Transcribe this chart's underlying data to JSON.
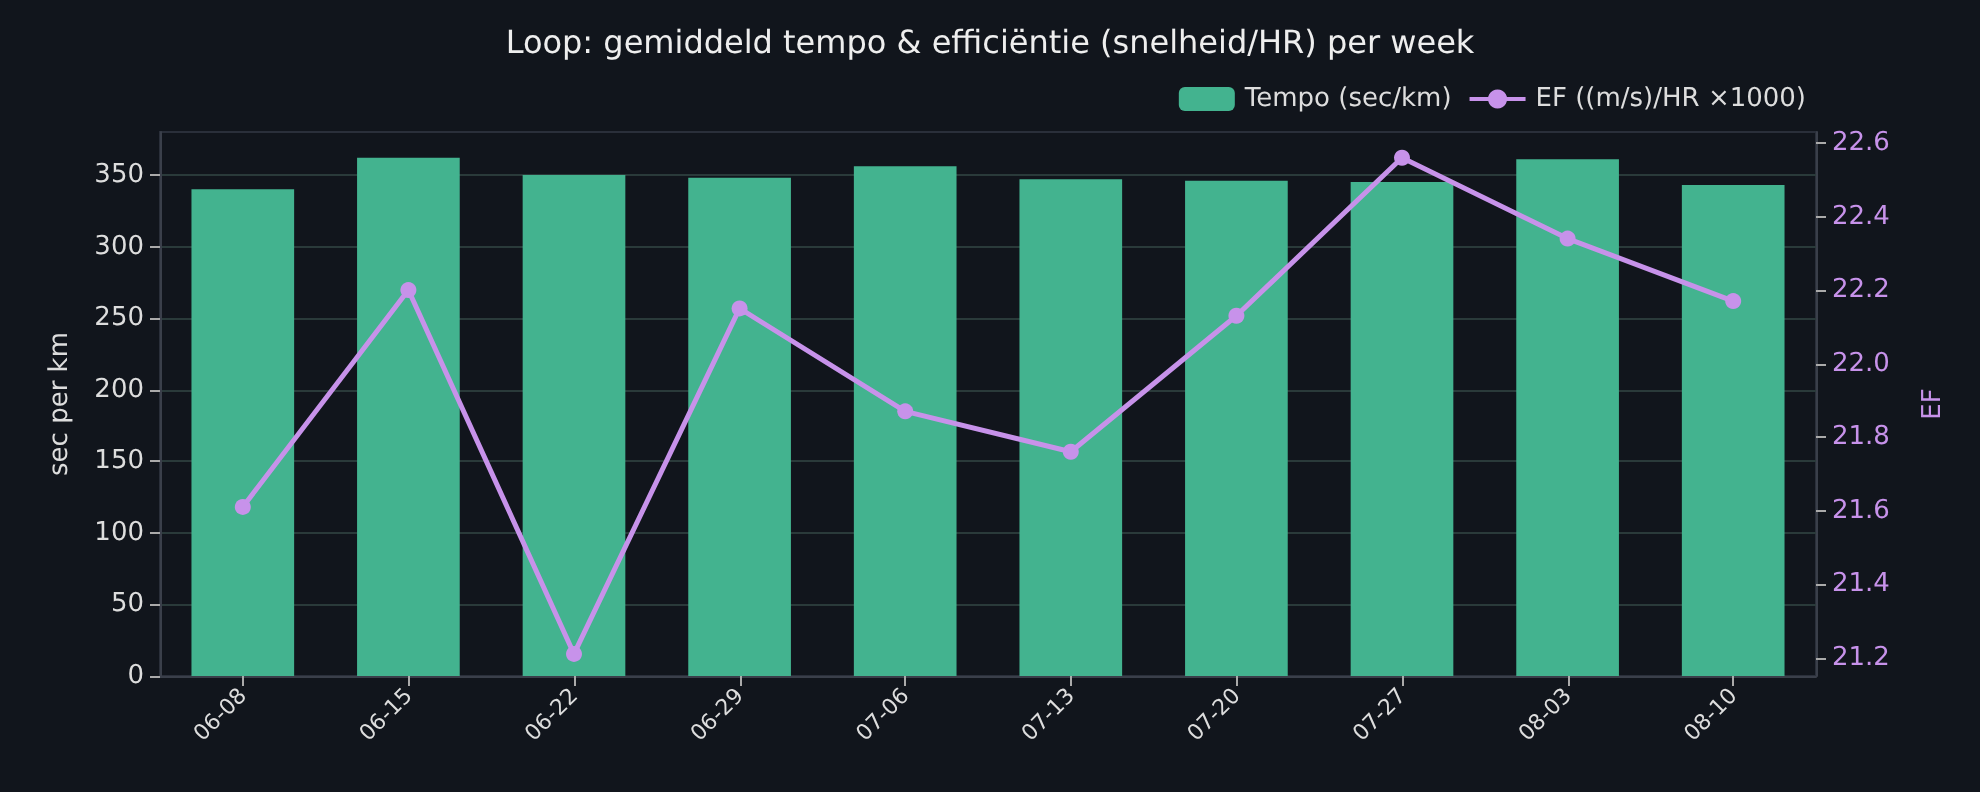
{
  "chart_data": {
    "type": "bar",
    "title": "Loop: gemiddeld tempo & efficiëntie (snelheid/HR) per week",
    "ylabel": "sec per km",
    "y2label": "EF",
    "categories": [
      "06-08",
      "06-15",
      "06-22",
      "06-29",
      "07-06",
      "07-13",
      "07-20",
      "07-27",
      "08-03",
      "08-10"
    ],
    "series": [
      {
        "name": "Tempo (sec/km)",
        "color": "#43b38f",
        "values": [
          340,
          362,
          350,
          348,
          356,
          347,
          346,
          345,
          361,
          343
        ]
      },
      {
        "name": "EF ((m/s)/HR ×1000)",
        "type": "line",
        "axis": "y2",
        "color": "#c792ea",
        "marker": "circle",
        "values": [
          21.61,
          22.2,
          21.21,
          22.15,
          21.87,
          21.76,
          22.13,
          22.56,
          22.34,
          22.17
        ]
      }
    ],
    "ylim": [
      0,
      380
    ],
    "yticks": [
      0,
      50,
      100,
      150,
      200,
      250,
      300,
      350
    ],
    "y2lim": [
      21.15,
      22.63
    ],
    "y2ticks": [
      21.2,
      21.4,
      21.6,
      21.8,
      {
        "value": 22,
        "label": "22.0"
      },
      22.2,
      22.4,
      22.6
    ],
    "grid": "y",
    "legend": "top right"
  }
}
